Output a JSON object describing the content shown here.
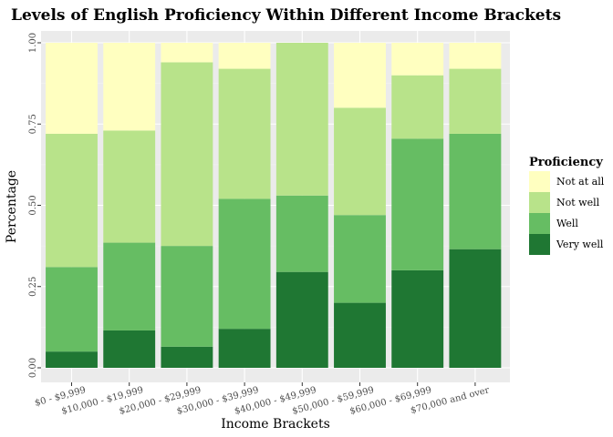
{
  "chart_data": {
    "type": "bar",
    "stacked": true,
    "title": "Levels of English Proficiency Within Different Income Brackets",
    "xlabel": "Income Brackets",
    "ylabel": "Percentage",
    "ylim": [
      0,
      1
    ],
    "yticks": [
      "0.00",
      "0.25",
      "0.50",
      "0.75",
      "1.00"
    ],
    "categories": [
      "$0 - $9,999",
      "$10,000 - $19,999",
      "$20,000 - $29,999",
      "$30,000 - $39,999",
      "$40,000 - $49,999",
      "$50,000 - $59,999",
      "$60,000 - $69,999",
      "$70,000 and over"
    ],
    "series": [
      {
        "name": "Very well",
        "color": "#1f7733",
        "values": [
          0.05,
          0.115,
          0.065,
          0.12,
          0.295,
          0.2,
          0.3,
          0.365
        ]
      },
      {
        "name": "Well",
        "color": "#66bd63",
        "values": [
          0.26,
          0.27,
          0.31,
          0.4,
          0.235,
          0.27,
          0.405,
          0.355
        ]
      },
      {
        "name": "Not well",
        "color": "#b8e38a",
        "values": [
          0.41,
          0.345,
          0.565,
          0.4,
          0.47,
          0.33,
          0.195,
          0.2
        ]
      },
      {
        "name": "Not at all",
        "color": "#ffffc0",
        "values": [
          0.28,
          0.27,
          0.06,
          0.08,
          0.0,
          0.2,
          0.1,
          0.08
        ]
      }
    ],
    "legend": {
      "title": "Proficiency",
      "placement": "right",
      "order": [
        "Not at all",
        "Not well",
        "Well",
        "Very well"
      ]
    },
    "grid": true,
    "panel_background": "#ebebeb"
  }
}
